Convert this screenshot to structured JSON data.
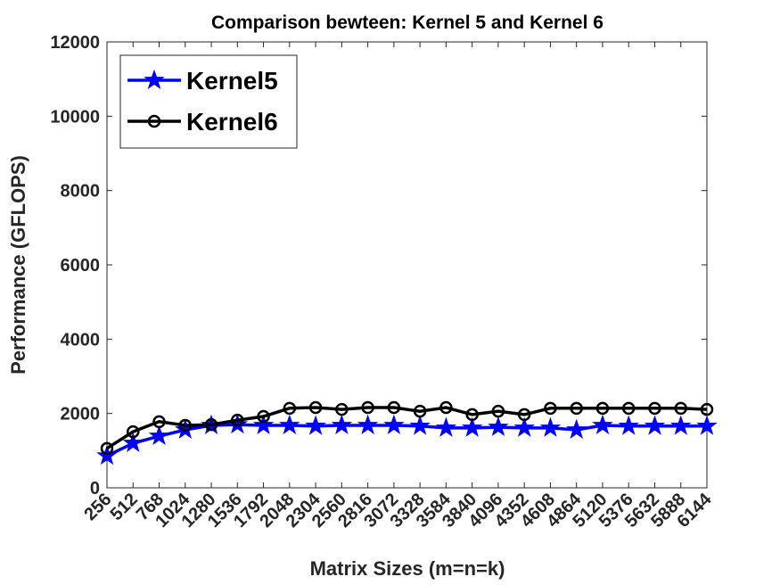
{
  "chart_data": {
    "type": "line",
    "title": "Comparison bewteen: Kernel 5 and Kernel 6",
    "x_label": "Matrix Sizes (m=n=k)",
    "y_label": "Performance (GFLOPS)",
    "x": [
      256,
      512,
      768,
      1024,
      1280,
      1536,
      1792,
      2048,
      2304,
      2560,
      2816,
      3072,
      3328,
      3584,
      3840,
      4096,
      4352,
      4608,
      4864,
      5120,
      5376,
      5632,
      5888,
      6144
    ],
    "xlim": [
      256,
      6144
    ],
    "xticks": [
      256,
      512,
      768,
      1024,
      1280,
      1536,
      1792,
      2048,
      2304,
      2560,
      2816,
      3072,
      3328,
      3584,
      3840,
      4096,
      4352,
      4608,
      4864,
      5120,
      5376,
      5632,
      5888,
      6144
    ],
    "ylim": [
      0,
      12000
    ],
    "yticks": [
      0,
      2000,
      4000,
      6000,
      8000,
      10000,
      12000
    ],
    "legend": "upper left",
    "series": [
      {
        "name": "Kernel5",
        "color": "#0000ff",
        "marker": "star",
        "values": [
          860,
          1200,
          1390,
          1560,
          1680,
          1700,
          1680,
          1680,
          1660,
          1680,
          1680,
          1680,
          1660,
          1610,
          1610,
          1630,
          1610,
          1610,
          1560,
          1680,
          1660,
          1660,
          1660,
          1660
        ]
      },
      {
        "name": "Kernel6",
        "color": "#000000",
        "marker": "circle",
        "values": [
          1060,
          1510,
          1780,
          1680,
          1700,
          1820,
          1920,
          2140,
          2160,
          2110,
          2160,
          2160,
          2060,
          2160,
          1970,
          2060,
          1970,
          2140,
          2140,
          2140,
          2140,
          2140,
          2140,
          2110
        ]
      }
    ]
  }
}
